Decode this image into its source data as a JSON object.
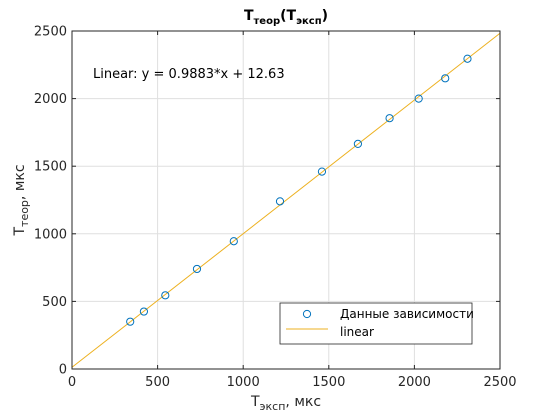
{
  "chart_data": {
    "type": "scatter",
    "title": "T",
    "title_sub": "теор",
    "title_paren_open": "(T",
    "title_paren_sub": "эксп",
    "title_paren_close": ")",
    "xlabel": "T",
    "xlabel_sub": "эксп",
    "xlabel_unit": ", мкс",
    "ylabel": "T",
    "ylabel_sub": "теор",
    "ylabel_unit": ", мкс",
    "xlim": [
      0,
      2500
    ],
    "ylim": [
      0,
      2500
    ],
    "x_ticks": [
      0,
      500,
      1000,
      1500,
      2000,
      2500
    ],
    "y_ticks": [
      0,
      500,
      1000,
      1500,
      2000,
      2500
    ],
    "grid": true,
    "annotation": "Linear:  y = 0.9883*x + 12.63",
    "legend_position": "lower-right",
    "series": [
      {
        "name": "Данные  зависимости",
        "marker": "circle",
        "color": "#0072BD",
        "x": [
          340,
          420,
          545,
          730,
          945,
          1215,
          1460,
          1670,
          1855,
          2025,
          2180,
          2310
        ],
        "y": [
          350,
          425,
          545,
          740,
          945,
          1240,
          1460,
          1665,
          1855,
          2000,
          2150,
          2295
        ]
      },
      {
        "name": "linear",
        "line": true,
        "color": "#EDB120",
        "slope": 0.9883,
        "intercept": 12.63
      }
    ]
  }
}
